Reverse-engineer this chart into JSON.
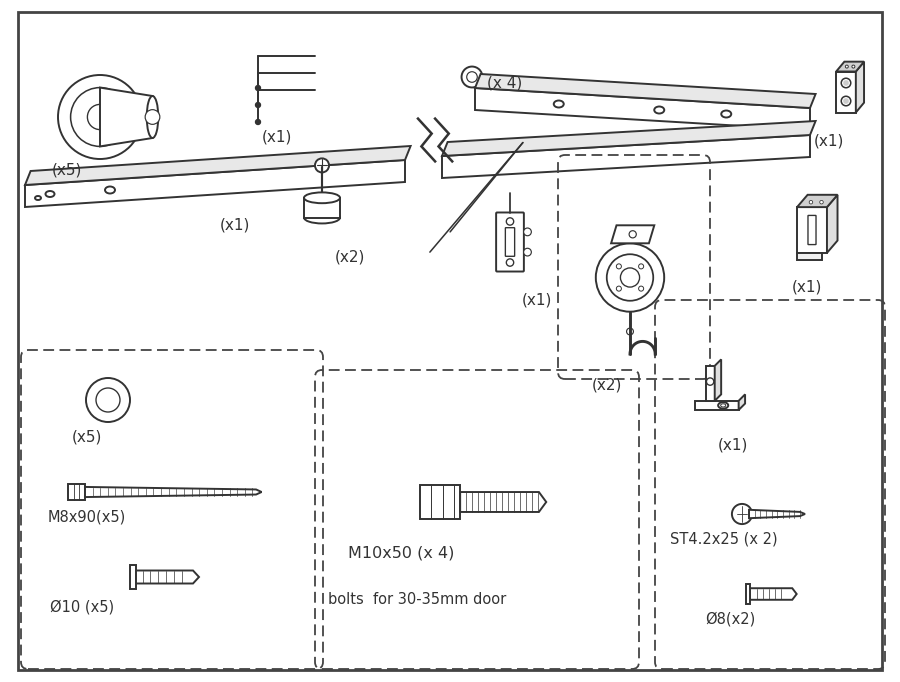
{
  "bg_color": "#ffffff",
  "line_color": "#333333",
  "line_width": 1.4,
  "labels": {
    "wall_stopper": "(x5)",
    "hex_keys": "(x1)",
    "washer_small": "(x 4)",
    "track_label": "(x1)",
    "bracket_small_top": "(x1)",
    "bracket_large": "(x1)",
    "floor_stop": "(x2)",
    "door_stop_plate": "(x1)",
    "roller": "(x2)",
    "washer_ring": "(x5)",
    "screw_m8": "M8x90(x5)",
    "anchor_10": "Ø10 (x5)",
    "bolt_m10_label1": "M10x50 (x 4)",
    "bolt_m10_label2": "bolts  for 30-35mm door",
    "floor_guide": "(x1)",
    "screw_st": "ST4.2x25 (x 2)",
    "anchor_8": "Ø8(x2)"
  }
}
